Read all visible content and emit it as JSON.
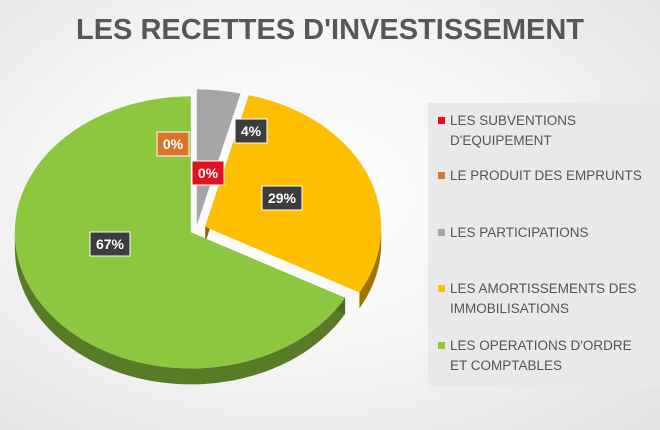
{
  "chart_data": {
    "type": "pie",
    "title": "LES RECETTES D'INVESTISSEMENT",
    "slices": [
      {
        "label": "LES SUBVENTIONS D'EQUIPEMENT",
        "value": 0,
        "display": "0%",
        "color": "#e3101d",
        "label_lines": [
          "LES SUBVENTIONS",
          "D'EQUIPEMENT"
        ]
      },
      {
        "label": "LE PRODUIT DES EMPRUNTS",
        "value": 0,
        "display": "0%",
        "color": "#d9742c",
        "label_lines": [
          "LE PRODUIT DES EMPRUNTS"
        ]
      },
      {
        "label": "LES PARTICIPATIONS",
        "value": 4,
        "display": "4%",
        "color": "#a5a5a5",
        "label_lines": [
          "LES PARTICIPATIONS"
        ]
      },
      {
        "label": "LES AMORTISSEMENTS DES IMMOBILISATIONS",
        "value": 29,
        "display": "29%",
        "color": "#fdbf00",
        "label_lines": [
          "LES AMORTISSEMENTS DES",
          "IMMOBILISATIONS"
        ]
      },
      {
        "label": "LES OPERATIONS D'ORDRE ET COMPTABLES",
        "value": 67,
        "display": "67%",
        "color": "#8dc63f",
        "label_lines": [
          "LES OPERATIONS D'ORDRE",
          "ET COMPTABLES"
        ]
      }
    ],
    "legend_position": "right",
    "style": "3d-exploded"
  }
}
